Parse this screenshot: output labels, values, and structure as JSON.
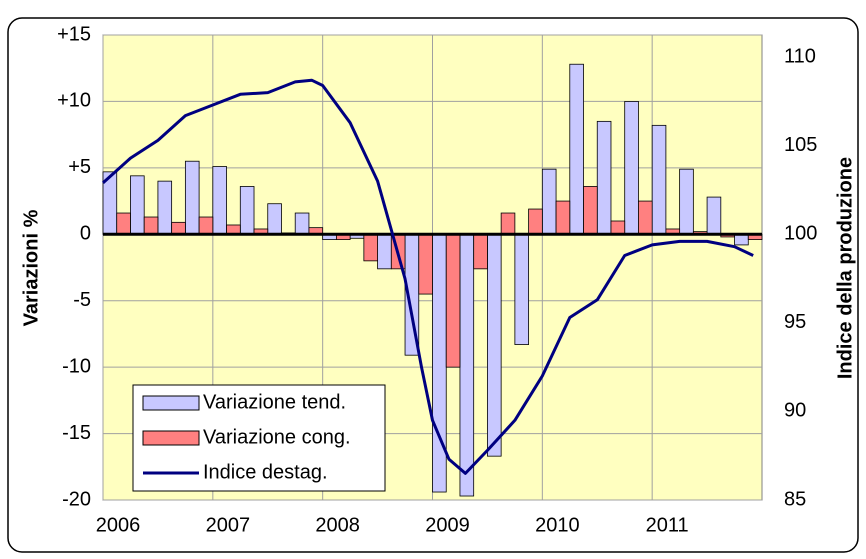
{
  "chart_data": {
    "type": "combo",
    "x": [
      2006,
      2006.25,
      2006.5,
      2006.75,
      2007,
      2007.25,
      2007.5,
      2007.75,
      2008,
      2008.25,
      2008.5,
      2008.75,
      2009,
      2009.25,
      2009.5,
      2009.75,
      2010,
      2010.25,
      2010.5,
      2010.75,
      2011,
      2011.25,
      2011.5,
      2011.75
    ],
    "series": [
      {
        "name": "Variazione tend.",
        "type": "bar",
        "color": "#c8c8ff",
        "values": [
          4.7,
          4.4,
          4.0,
          5.5,
          5.1,
          3.6,
          2.3,
          1.6,
          -0.4,
          -0.3,
          -2.6,
          -9.1,
          -19.4,
          -19.7,
          -16.7,
          -8.3,
          4.9,
          12.8,
          8.5,
          10.0,
          8.2,
          4.9,
          2.8,
          -0.8
        ]
      },
      {
        "name": "Variazione cong.",
        "type": "bar",
        "color": "#ff8080",
        "values": [
          1.6,
          1.3,
          0.9,
          1.3,
          0.7,
          0.4,
          0.1,
          0.5,
          -0.4,
          -2.0,
          -2.6,
          -4.5,
          -10.0,
          -2.6,
          1.6,
          1.9,
          2.5,
          3.6,
          1.0,
          2.5,
          0.4,
          0.2,
          -0.2,
          -0.4
        ]
      },
      {
        "name": "Indice destag.",
        "type": "line",
        "color": "#000080",
        "axis": "y2",
        "x": [
          2006.0,
          2006.25,
          2006.5,
          2006.75,
          2007.0,
          2007.25,
          2007.5,
          2007.75,
          2007.9,
          2008.0,
          2008.25,
          2008.5,
          2008.75,
          2008.9,
          2009.0,
          2009.15,
          2009.3,
          2009.5,
          2009.75,
          2010.0,
          2010.25,
          2010.5,
          2010.75,
          2011.0,
          2011.25,
          2011.5,
          2011.75,
          2011.92
        ],
        "values": [
          102.9,
          104.3,
          105.3,
          106.7,
          107.3,
          107.9,
          108.0,
          108.6,
          108.7,
          108.4,
          106.3,
          103.0,
          97.5,
          92.5,
          89.5,
          87.3,
          86.5,
          87.8,
          89.5,
          92.0,
          95.3,
          96.3,
          98.8,
          99.4,
          99.6,
          99.6,
          99.3,
          98.8
        ]
      }
    ],
    "ylabel": "Variazioni %",
    "y2label": "Indice della produzione",
    "xlim": [
      2006,
      2012
    ],
    "xticks": [
      2006,
      2007,
      2008,
      2009,
      2010,
      2011
    ],
    "ylim": [
      -20,
      15
    ],
    "yticks": [
      -20,
      -15,
      -10,
      -5,
      0,
      {
        "value": 5,
        "label": "+5"
      },
      {
        "value": 10,
        "label": "+10"
      },
      {
        "value": 15,
        "label": "+15"
      }
    ],
    "y2lim": [
      85,
      111.25
    ],
    "y2ticks": [
      85,
      90,
      95,
      100,
      105,
      110
    ],
    "grid": true,
    "legend": "lower left"
  }
}
